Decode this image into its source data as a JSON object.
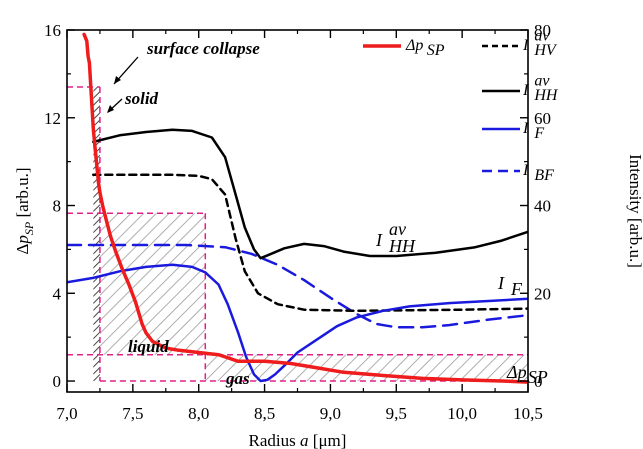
{
  "chart_data": {
    "type": "line",
    "xlabel": "Radius a [μm]",
    "xlabel_parts": [
      "Radius ",
      "a",
      " [μm]"
    ],
    "ylabel_left": "Δp_SP [arb.u.]",
    "ylabel_right": "Intensity [arb.u.]",
    "xlim": [
      7.0,
      10.5
    ],
    "ylim_left": [
      -0.5,
      16
    ],
    "ylim_right": [
      -2.5,
      80
    ],
    "x_ticks": [
      7.0,
      7.5,
      8.0,
      8.5,
      9.0,
      9.5,
      10.0,
      10.5
    ],
    "x_tick_labels": [
      "7,0",
      "7,5",
      "8,0",
      "8,5",
      "9,0",
      "9,5",
      "10,0",
      "10,5"
    ],
    "y_left_ticks": [
      0,
      4,
      8,
      12,
      16
    ],
    "y_left_tick_labels": [
      "0",
      "4",
      "8",
      "12",
      "16"
    ],
    "y_right_ticks": [
      0,
      20,
      40,
      60,
      80
    ],
    "y_right_tick_labels": [
      "0",
      "20",
      "40",
      "60",
      "80"
    ],
    "grid": false,
    "legend": {
      "placement": "top-right",
      "entries": [
        {
          "series": "dp_sp",
          "label": "Δp",
          "sub": "SP"
        },
        {
          "series": "I_HV",
          "label": "I",
          "sup": "av",
          "sub": "HV"
        },
        {
          "series": "I_HH",
          "label": "I",
          "sup": "av",
          "sub": "HH"
        },
        {
          "series": "I_F",
          "label": "I",
          "sub": "F"
        },
        {
          "series": "I_BF",
          "label": "I",
          "sub": "BF"
        }
      ]
    },
    "series": [
      {
        "id": "dp_sp",
        "axis": "left",
        "color": "#ee1c1c",
        "dash": "none",
        "width": 3.5,
        "points": [
          [
            7.13,
            15.8
          ],
          [
            7.15,
            15.5
          ],
          [
            7.16,
            14.8
          ],
          [
            7.17,
            14.5
          ],
          [
            7.18,
            13.5
          ],
          [
            7.19,
            12.5
          ],
          [
            7.2,
            11.5
          ],
          [
            7.21,
            10.8
          ],
          [
            7.22,
            10.2
          ],
          [
            7.23,
            9.6
          ],
          [
            7.24,
            9.0
          ],
          [
            7.25,
            8.6
          ],
          [
            7.27,
            8.0
          ],
          [
            7.3,
            7.3
          ],
          [
            7.33,
            6.6
          ],
          [
            7.37,
            5.9
          ],
          [
            7.42,
            5.1
          ],
          [
            7.47,
            4.4
          ],
          [
            7.52,
            3.6
          ],
          [
            7.57,
            2.6
          ],
          [
            7.6,
            2.2
          ],
          [
            7.65,
            1.8
          ],
          [
            7.75,
            1.5
          ],
          [
            7.85,
            1.4
          ],
          [
            8.0,
            1.3
          ],
          [
            8.15,
            1.2
          ],
          [
            8.2,
            1.1
          ],
          [
            8.3,
            0.9
          ],
          [
            8.5,
            0.9
          ],
          [
            8.7,
            0.8
          ],
          [
            8.9,
            0.6
          ],
          [
            9.1,
            0.4
          ],
          [
            9.4,
            0.25
          ],
          [
            9.7,
            0.12
          ],
          [
            10.0,
            0.05
          ],
          [
            10.3,
            0.0
          ],
          [
            10.5,
            -0.05
          ]
        ]
      },
      {
        "id": "I_HV",
        "axis": "left",
        "color": "#000000",
        "dash": "7,5",
        "width": 2.5,
        "points": [
          [
            7.2,
            9.4
          ],
          [
            7.5,
            9.4
          ],
          [
            7.8,
            9.4
          ],
          [
            8.0,
            9.35
          ],
          [
            8.1,
            9.2
          ],
          [
            8.2,
            8.5
          ],
          [
            8.28,
            6.5
          ],
          [
            8.35,
            5.0
          ],
          [
            8.45,
            4.0
          ],
          [
            8.6,
            3.5
          ],
          [
            8.8,
            3.25
          ],
          [
            9.2,
            3.2
          ],
          [
            10.0,
            3.25
          ],
          [
            10.5,
            3.3
          ]
        ]
      },
      {
        "id": "I_HH",
        "axis": "left",
        "color": "#000000",
        "dash": "none",
        "width": 2.5,
        "points": [
          [
            7.2,
            10.9
          ],
          [
            7.4,
            11.2
          ],
          [
            7.6,
            11.35
          ],
          [
            7.8,
            11.45
          ],
          [
            7.95,
            11.4
          ],
          [
            8.1,
            11.1
          ],
          [
            8.2,
            10.2
          ],
          [
            8.28,
            8.5
          ],
          [
            8.35,
            7.0
          ],
          [
            8.42,
            6.0
          ],
          [
            8.47,
            5.6
          ],
          [
            8.55,
            5.8
          ],
          [
            8.65,
            6.05
          ],
          [
            8.8,
            6.25
          ],
          [
            8.95,
            6.15
          ],
          [
            9.1,
            5.9
          ],
          [
            9.3,
            5.7
          ],
          [
            9.5,
            5.7
          ],
          [
            9.8,
            5.85
          ],
          [
            10.1,
            6.1
          ],
          [
            10.3,
            6.4
          ],
          [
            10.5,
            6.8
          ]
        ]
      },
      {
        "id": "I_F",
        "axis": "left",
        "color": "#1a1adf",
        "dash": "none",
        "width": 2.5,
        "points": [
          [
            7.0,
            4.5
          ],
          [
            7.2,
            4.7
          ],
          [
            7.4,
            5.0
          ],
          [
            7.6,
            5.2
          ],
          [
            7.8,
            5.3
          ],
          [
            7.95,
            5.2
          ],
          [
            8.05,
            4.95
          ],
          [
            8.15,
            4.4
          ],
          [
            8.22,
            3.5
          ],
          [
            8.3,
            2.2
          ],
          [
            8.36,
            1.1
          ],
          [
            8.42,
            0.3
          ],
          [
            8.47,
            0.0
          ],
          [
            8.52,
            0.05
          ],
          [
            8.58,
            0.3
          ],
          [
            8.65,
            0.7
          ],
          [
            8.75,
            1.3
          ],
          [
            8.9,
            1.9
          ],
          [
            9.05,
            2.5
          ],
          [
            9.2,
            2.9
          ],
          [
            9.4,
            3.2
          ],
          [
            9.6,
            3.4
          ],
          [
            9.9,
            3.55
          ],
          [
            10.2,
            3.65
          ],
          [
            10.5,
            3.75
          ]
        ]
      },
      {
        "id": "I_BF",
        "axis": "left",
        "color": "#1a1adf",
        "dash": "14,8",
        "width": 2.5,
        "points": [
          [
            7.0,
            6.2
          ],
          [
            7.5,
            6.2
          ],
          [
            7.9,
            6.2
          ],
          [
            8.2,
            6.1
          ],
          [
            8.4,
            5.8
          ],
          [
            8.6,
            5.3
          ],
          [
            8.8,
            4.6
          ],
          [
            9.0,
            3.8
          ],
          [
            9.2,
            3.05
          ],
          [
            9.35,
            2.6
          ],
          [
            9.5,
            2.45
          ],
          [
            9.7,
            2.45
          ],
          [
            9.9,
            2.55
          ],
          [
            10.2,
            2.8
          ],
          [
            10.5,
            3.0
          ]
        ]
      }
    ],
    "regions": [
      {
        "label": "surface collapse",
        "x": [
          7.2,
          7.25
        ],
        "y": [
          0,
          13.4
        ],
        "hatched": true
      },
      {
        "label": "solid",
        "x": [
          7.25,
          7.25
        ],
        "y": [
          0,
          7.65
        ]
      },
      {
        "label": "liquid",
        "x": [
          7.25,
          8.05
        ],
        "y": [
          1.2,
          7.65
        ],
        "hatched": true
      },
      {
        "label": "gas",
        "x": [
          8.05,
          10.5
        ],
        "y": [
          0,
          1.2
        ],
        "hatched": true
      }
    ],
    "annotations": {
      "surface_collapse": "surface collapse",
      "solid": "solid",
      "liquid": "liquid",
      "gas": "gas",
      "curve_label_IHH": {
        "label": "I",
        "sup": "av",
        "sub": "HH"
      },
      "curve_label_IF": {
        "label": "I",
        "sub": "F"
      },
      "curve_label_dp": {
        "label": "Δp",
        "sub": "SP"
      }
    }
  }
}
